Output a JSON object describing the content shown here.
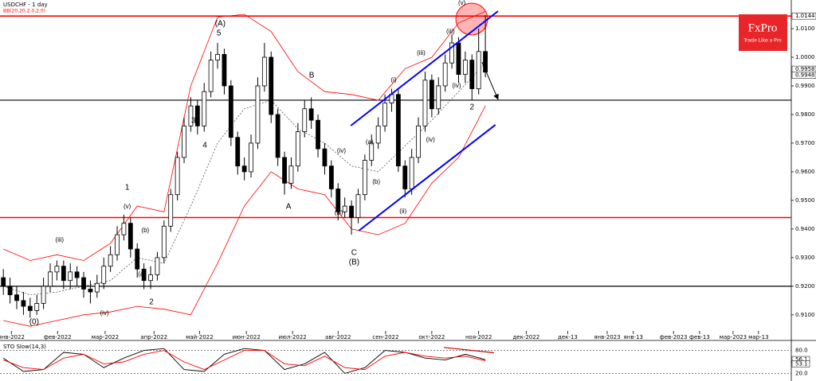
{
  "chart_data": {
    "type": "candlestick",
    "title": "USDCHF - 1 day",
    "indicator": "BB(20,20,2.0,2.0)",
    "logo": "FxPro",
    "logo_tagline": "Trade Like a Pro",
    "xlim": [
      -0.5,
      117.7
    ],
    "ylim": [
      0.9044,
      1.02
    ],
    "xticks": [
      {
        "value": 1.2,
        "label": "янв-2022"
      },
      {
        "value": 8.1,
        "label": "фев-2022"
      },
      {
        "value": 15.2,
        "label": "мар-2022"
      },
      {
        "value": 22.5,
        "label": "апр-2022"
      },
      {
        "value": 29.3,
        "label": "май-2022"
      },
      {
        "value": 36.3,
        "label": "июн-2022"
      },
      {
        "value": 43.2,
        "label": "июл-2022"
      },
      {
        "value": 50,
        "label": "авг-2022"
      },
      {
        "value": 57.1,
        "label": "сен-2022"
      },
      {
        "value": 64,
        "label": "окт-2022"
      },
      {
        "value": 71,
        "label": "ноя-2022"
      },
      {
        "value": 78.1,
        "label": "дек-2022"
      },
      {
        "value": 84.3,
        "label": "дек-13"
      },
      {
        "value": 90.2,
        "label": "янв-2023"
      },
      {
        "value": 94.1,
        "label": "янв-13"
      },
      {
        "value": 100.1,
        "label": "фев-2023"
      },
      {
        "value": 104,
        "label": "фев-13"
      },
      {
        "value": 109,
        "label": "мар-2023"
      },
      {
        "value": 112.8,
        "label": "мар-13"
      }
    ],
    "yticks": [
      {
        "value": 1.01,
        "label": "1.0100"
      },
      {
        "value": 1,
        "label": "1.0000"
      },
      {
        "value": 0.99,
        "label": "0.9900"
      },
      {
        "value": 0.98,
        "label": "0.9800"
      },
      {
        "value": 0.97,
        "label": "0.9700"
      },
      {
        "value": 0.96,
        "label": "0.9600"
      },
      {
        "value": 0.95,
        "label": "0.9500"
      },
      {
        "value": 0.94,
        "label": "0.9400"
      },
      {
        "value": 0.93,
        "label": "0.9300"
      },
      {
        "value": 0.92,
        "label": "0.9200"
      },
      {
        "value": 0.91,
        "label": "0.9100"
      }
    ],
    "open": [
      0.923,
      0.92,
      0.917,
      0.915,
      0.913,
      0.9115,
      0.914,
      0.92,
      0.925,
      0.927,
      0.922,
      0.925,
      0.923,
      0.919,
      0.918,
      0.921,
      0.927,
      0.931,
      0.938,
      0.942,
      0.933,
      0.926,
      0.922,
      0.924,
      0.93,
      0.941,
      0.952,
      0.965,
      0.976,
      0.983,
      0.976,
      0.988,
      0.999,
      1.001,
      0.99,
      0.972,
      0.962,
      0.96,
      0.97,
      0.99,
      1.0,
      0.98,
      0.965,
      0.956,
      0.962,
      0.974,
      0.982,
      0.978,
      0.968,
      0.962,
      0.954,
      0.946,
      0.948,
      0.944,
      0.952,
      0.964,
      0.97,
      0.976,
      0.984,
      0.987,
      0.962,
      0.954,
      0.965,
      0.976,
      0.992,
      0.982,
      0.99,
      0.998,
      1.005,
      0.994,
      0.999,
      0.989,
      1.002
    ],
    "high": [
      0.926,
      0.923,
      0.92,
      0.918,
      0.916,
      0.917,
      0.923,
      0.928,
      0.929,
      0.929,
      0.928,
      0.927,
      0.925,
      0.922,
      0.924,
      0.93,
      0.934,
      0.941,
      0.945,
      0.944,
      0.935,
      0.928,
      0.927,
      0.932,
      0.943,
      0.954,
      0.967,
      0.979,
      0.986,
      0.985,
      0.991,
      1.002,
      1.005,
      1.003,
      0.992,
      0.974,
      0.965,
      0.973,
      0.993,
      1.005,
      1.002,
      0.982,
      0.967,
      0.965,
      0.977,
      0.985,
      0.986,
      0.98,
      0.97,
      0.964,
      0.956,
      0.951,
      0.95,
      0.954,
      0.966,
      0.973,
      0.979,
      0.987,
      0.989,
      0.989,
      0.964,
      0.968,
      0.979,
      0.995,
      0.994,
      0.993,
      1.001,
      1.008,
      1.007,
      1.002,
      1.001,
      1.01,
      1.0147
    ],
    "low": [
      0.917,
      0.914,
      0.912,
      0.91,
      0.909,
      0.91,
      0.912,
      0.918,
      0.922,
      0.919,
      0.919,
      0.92,
      0.916,
      0.914,
      0.916,
      0.919,
      0.925,
      0.929,
      0.936,
      0.93,
      0.923,
      0.919,
      0.919,
      0.922,
      0.928,
      0.939,
      0.95,
      0.963,
      0.974,
      0.973,
      0.974,
      0.986,
      0.996,
      0.987,
      0.969,
      0.959,
      0.957,
      0.958,
      0.968,
      0.988,
      0.977,
      0.962,
      0.952,
      0.954,
      0.96,
      0.972,
      0.975,
      0.965,
      0.959,
      0.951,
      0.943,
      0.944,
      0.938,
      0.942,
      0.95,
      0.962,
      0.968,
      0.974,
      0.981,
      0.96,
      0.951,
      0.952,
      0.963,
      0.974,
      0.979,
      0.98,
      0.988,
      0.996,
      0.991,
      0.991,
      0.985,
      0.987,
      0.993
    ],
    "close": [
      0.92,
      0.917,
      0.915,
      0.913,
      0.9115,
      0.914,
      0.92,
      0.925,
      0.927,
      0.922,
      0.925,
      0.923,
      0.919,
      0.918,
      0.921,
      0.927,
      0.931,
      0.938,
      0.942,
      0.933,
      0.926,
      0.922,
      0.924,
      0.93,
      0.941,
      0.952,
      0.965,
      0.976,
      0.983,
      0.976,
      0.988,
      0.999,
      1.001,
      0.99,
      0.972,
      0.962,
      0.96,
      0.97,
      0.99,
      1.0,
      0.98,
      0.965,
      0.956,
      0.962,
      0.974,
      0.982,
      0.978,
      0.968,
      0.962,
      0.954,
      0.946,
      0.948,
      0.944,
      0.952,
      0.964,
      0.97,
      0.976,
      0.984,
      0.987,
      0.962,
      0.954,
      0.965,
      0.976,
      0.992,
      0.982,
      0.99,
      0.998,
      1.005,
      0.994,
      0.999,
      0.989,
      1.002,
      0.9948
    ],
    "bands": {
      "x": [
        0,
        4,
        8,
        12,
        16,
        20,
        24,
        28,
        32,
        36,
        40,
        44,
        48,
        52,
        56,
        60,
        64,
        68,
        72
      ],
      "colors": [
        "#ff0000",
        "#555555",
        "#ff0000"
      ],
      "upper": [
        0.933,
        0.929,
        0.931,
        0.929,
        0.935,
        0.948,
        0.946,
        0.99,
        1.014,
        1.015,
        1.009,
        0.995,
        0.988,
        0.987,
        0.985,
        0.996,
        1.0,
        1.012,
        1.016
      ],
      "middle": [
        0.92,
        0.917,
        0.918,
        0.92,
        0.922,
        0.93,
        0.928,
        0.948,
        0.97,
        0.982,
        0.985,
        0.975,
        0.97,
        0.962,
        0.96,
        0.969,
        0.978,
        0.988,
        0.998
      ],
      "lower": [
        0.908,
        0.906,
        0.908,
        0.91,
        0.911,
        0.913,
        0.912,
        0.91,
        0.928,
        0.948,
        0.96,
        0.954,
        0.952,
        0.94,
        0.938,
        0.942,
        0.956,
        0.965,
        0.983
      ]
    },
    "levels": {
      "values": [
        1.0144,
        0.985,
        0.944,
        0.92
      ],
      "colors": [
        "#ff0000",
        "#000000",
        "#ff0000",
        "#000000"
      ],
      "value_labels": [
        "1.0144",
        null,
        null,
        null
      ]
    },
    "current_prices": {
      "values": [
        0.9958,
        0.9948
      ],
      "value_labels": [
        "0.9958",
        "0.9948"
      ]
    },
    "lines": [
      {
        "x": [
          51.9,
          73.9
        ],
        "y": [
          0.9761,
          1.0161
        ],
        "color": "#0000ff",
        "arrow": false
      },
      {
        "x": [
          53.1,
          73.5
        ],
        "y": [
          0.9394,
          0.9764
        ],
        "color": "#0000ff",
        "arrow": false
      },
      {
        "x": [
          71.5,
          73.9
        ],
        "y": [
          0.9983,
          0.9853
        ],
        "color": "#000000",
        "arrow": true
      }
    ],
    "annotations": [
      {
        "text": "(0)",
        "x": 4.6,
        "y": 0.9075
      },
      {
        "text": "1",
        "x": 18.5,
        "y": 0.9544
      },
      {
        "text": "(v)",
        "x": 18.5,
        "y": 0.9478
      },
      {
        "text": "2",
        "x": 22.1,
        "y": 0.9144
      },
      {
        "text": "3",
        "x": 28.4,
        "y": 0.9778
      },
      {
        "text": "4",
        "x": 30.1,
        "y": 0.9692
      },
      {
        "text": "5",
        "x": 32.2,
        "y": 1.0083
      },
      {
        "text": "(A)",
        "x": 32.4,
        "y": 1.0117
      },
      {
        "text": "A",
        "x": 42.6,
        "y": 0.9478
      },
      {
        "text": "B",
        "x": 46.05,
        "y": 0.9936
      },
      {
        "text": "C",
        "x": 52.4,
        "y": 0.9317
      },
      {
        "text": "(B)",
        "x": 52.4,
        "y": 0.9283
      },
      {
        "text": "2",
        "x": 70,
        "y": 0.9825
      },
      {
        "text": "(v)",
        "x": 68.5,
        "y": 1.0189
      },
      {
        "text": "(iii)",
        "x": 8.4,
        "y": 0.9361
      },
      {
        "text": "(iv)",
        "x": 15.1,
        "y": 0.9106
      },
      {
        "text": "(b)",
        "x": 21.2,
        "y": 0.9394
      },
      {
        "text": "(a)",
        "x": 20.7,
        "y": 0.9242
      },
      {
        "text": "(i)",
        "x": 58.3,
        "y": 0.9919
      },
      {
        "text": "(ii)",
        "x": 59.7,
        "y": 0.9461
      },
      {
        "text": "(iii)",
        "x": 62.4,
        "y": 1.0014
      },
      {
        "text": "(iv)",
        "x": 63.8,
        "y": 0.9711
      },
      {
        "text": "(a)",
        "x": 54.7,
        "y": 0.9703
      },
      {
        "text": "(b)",
        "x": 55.7,
        "y": 0.9564
      },
      {
        "text": "(iii)",
        "x": 66.8,
        "y": 1.0089
      },
      {
        "text": "(iv)",
        "x": 67.7,
        "y": 0.99
      },
      {
        "text": "(iv)",
        "x": 50.5,
        "y": 0.9672
      },
      {
        "text": "(iii)",
        "x": 50.1,
        "y": 0.9456
      }
    ],
    "stochastic": {
      "title": "STO Slow(14,3)",
      "x": [
        0,
        3,
        6,
        9,
        12,
        15,
        18,
        21,
        24,
        27,
        30,
        33,
        36,
        39,
        42,
        45,
        48,
        51,
        54,
        57,
        60,
        63,
        66,
        69,
        72
      ],
      "ylim": [
        0,
        100
      ],
      "yticks": [
        {
          "value": 80,
          "label": "80.0"
        },
        {
          "value": 20,
          "label": "20.0"
        }
      ],
      "series": [
        {
          "values": [
            60,
            25,
            30,
            75,
            70,
            35,
            60,
            80,
            85,
            30,
            25,
            70,
            85,
            80,
            30,
            45,
            75,
            20,
            35,
            80,
            75,
            60,
            55,
            70,
            56.1
          ],
          "color": "#000000"
        },
        {
          "values": [
            55,
            35,
            30,
            60,
            70,
            45,
            50,
            70,
            80,
            50,
            30,
            55,
            80,
            80,
            45,
            40,
            65,
            35,
            30,
            65,
            75,
            65,
            60,
            65,
            53.1
          ],
          "color": "#ff0000"
        }
      ],
      "current": {
        "values": [
          56.1,
          53.1
        ],
        "value_labels": [
          "56.1",
          "53.1"
        ]
      },
      "lines": [
        {
          "x": [
            65.8,
            73.3
          ],
          "y": [
            88,
            74
          ],
          "color": "#cc0000"
        }
      ]
    }
  }
}
